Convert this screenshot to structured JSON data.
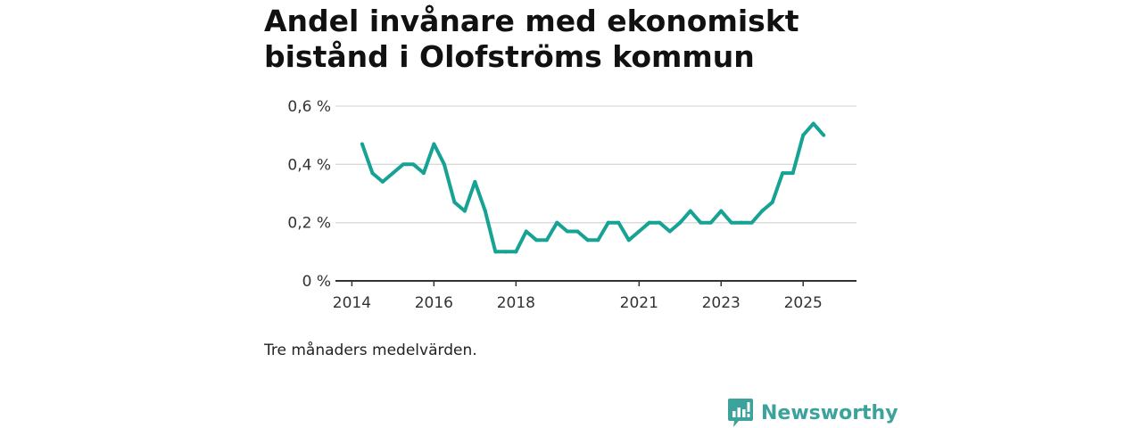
{
  "colors": {
    "line": "#16a394",
    "grid": "#d9d9d9",
    "axis": "#333333",
    "brand": "#3ba39b"
  },
  "chart_data": {
    "type": "line",
    "title": "Andel invånare med ekonomiskt bistånd i Olofströms kommun",
    "xlabel": "",
    "ylabel": "",
    "xlim": [
      2013.6,
      2026.3
    ],
    "ylim": [
      0,
      0.6
    ],
    "x_ticks": [
      {
        "value": 2014,
        "label": "2014"
      },
      {
        "value": 2016,
        "label": "2016"
      },
      {
        "value": 2018,
        "label": "2018"
      },
      {
        "value": 2021,
        "label": "2021"
      },
      {
        "value": 2023,
        "label": "2023"
      },
      {
        "value": 2025,
        "label": "2025"
      }
    ],
    "y_ticks": [
      {
        "value": 0,
        "label": "0 %"
      },
      {
        "value": 0.2,
        "label": "0,2 %"
      },
      {
        "value": 0.4,
        "label": "0,4 %"
      },
      {
        "value": 0.6,
        "label": "0,6 %"
      }
    ],
    "series": [
      {
        "name": "Andel invånare med ekonomiskt bistånd",
        "x": [
          2014.25,
          2014.5,
          2014.75,
          2015.0,
          2015.25,
          2015.5,
          2015.75,
          2016.0,
          2016.25,
          2016.5,
          2016.75,
          2017.0,
          2017.25,
          2017.5,
          2017.75,
          2018.0,
          2018.25,
          2018.5,
          2018.75,
          2019.0,
          2019.25,
          2019.5,
          2019.75,
          2020.0,
          2020.25,
          2020.5,
          2020.75,
          2021.0,
          2021.25,
          2021.5,
          2021.75,
          2022.0,
          2022.25,
          2022.5,
          2022.75,
          2023.0,
          2023.25,
          2023.5,
          2023.75,
          2024.0,
          2024.25,
          2024.5,
          2024.75,
          2025.0,
          2025.25,
          2025.5
        ],
        "values": [
          0.47,
          0.37,
          0.34,
          0.37,
          0.4,
          0.4,
          0.37,
          0.47,
          0.4,
          0.27,
          0.24,
          0.34,
          0.24,
          0.1,
          0.1,
          0.1,
          0.17,
          0.14,
          0.14,
          0.2,
          0.17,
          0.17,
          0.14,
          0.14,
          0.2,
          0.2,
          0.14,
          0.17,
          0.2,
          0.2,
          0.17,
          0.2,
          0.24,
          0.2,
          0.2,
          0.24,
          0.2,
          0.2,
          0.2,
          0.24,
          0.27,
          0.37,
          0.37,
          0.5,
          0.54,
          0.5
        ]
      }
    ],
    "grid": true,
    "legend": "none",
    "note": "Tre månaders medelvärden."
  },
  "brand": {
    "name": "Newsworthy"
  }
}
